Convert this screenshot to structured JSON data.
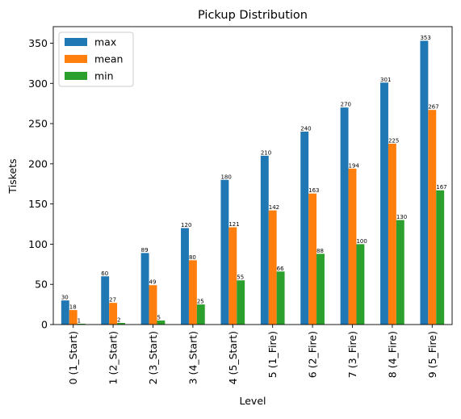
{
  "chart_data": {
    "type": "bar",
    "title": "Pickup Distribution",
    "xlabel": "Level",
    "ylabel": "Tiskets",
    "categories": [
      "0 (1_Start)",
      "1 (2_Start)",
      "2 (3_Start)",
      "3 (4_Start)",
      "4 (5_Start)",
      "5 (1_Fire)",
      "6 (2_Fire)",
      "7 (3_Fire)",
      "8 (4_Fire)",
      "9 (5_Fire)"
    ],
    "series": [
      {
        "name": "max",
        "color": "#1f77b4",
        "values": [
          30,
          60,
          89,
          120,
          180,
          210,
          240,
          270,
          301,
          353
        ]
      },
      {
        "name": "mean",
        "color": "#ff7f0e",
        "values": [
          18,
          27,
          49,
          80,
          121,
          142,
          163,
          194,
          225,
          267
        ]
      },
      {
        "name": "min",
        "color": "#2ca02c",
        "values": [
          1,
          2,
          5,
          25,
          55,
          66,
          88,
          100,
          130,
          167
        ]
      }
    ],
    "ylim": [
      0,
      370.6
    ],
    "yticks": [
      0,
      50,
      100,
      150,
      200,
      250,
      300,
      350
    ],
    "grid": false,
    "legend_position": "upper-left"
  }
}
